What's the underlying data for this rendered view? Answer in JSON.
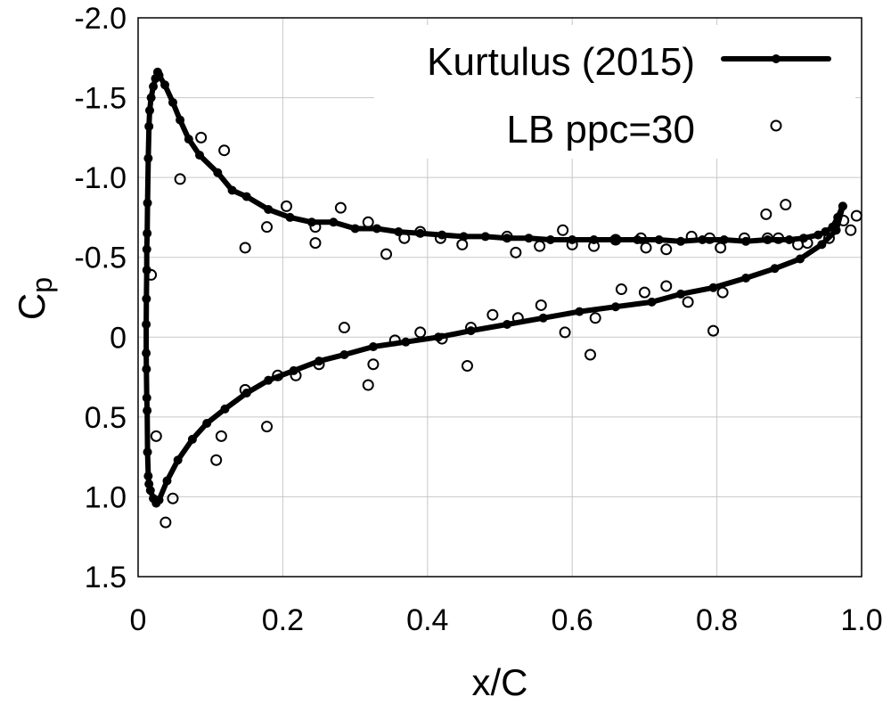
{
  "chart_data": {
    "type": "line",
    "title": "",
    "xlabel": "x/C",
    "ylabel": "Cp",
    "ylabel_main": "C",
    "ylabel_sub": "p",
    "xlim": [
      0,
      1.0
    ],
    "ylim": [
      -2.0,
      1.5
    ],
    "y_inverted": true,
    "grid": true,
    "legend_position": "top-right",
    "x_ticks": [
      {
        "value": 0.0,
        "label": "0"
      },
      {
        "value": 0.2,
        "label": "0.2"
      },
      {
        "value": 0.4,
        "label": "0.4"
      },
      {
        "value": 0.6,
        "label": "0.6"
      },
      {
        "value": 0.8,
        "label": "0.8"
      },
      {
        "value": 1.0,
        "label": "1.0"
      }
    ],
    "y_ticks": [
      {
        "value": -2.0,
        "label": "-2.0"
      },
      {
        "value": -1.5,
        "label": "-1.5"
      },
      {
        "value": -1.0,
        "label": "-1.0"
      },
      {
        "value": -0.5,
        "label": "-0.5"
      },
      {
        "value": 0.0,
        "label": "0"
      },
      {
        "value": 0.5,
        "label": "0.5"
      },
      {
        "value": 1.0,
        "label": "1.0"
      },
      {
        "value": 1.5,
        "label": "1.5"
      }
    ],
    "series": [
      {
        "name": "Kurtulus (2015)",
        "style": "line-with-points",
        "color": "#000000",
        "points": [
          [
            0.974,
            -0.82
          ],
          [
            0.967,
            -0.75
          ],
          [
            0.96,
            -0.69
          ],
          [
            0.95,
            -0.66
          ],
          [
            0.94,
            -0.64
          ],
          [
            0.92,
            -0.62
          ],
          [
            0.9,
            -0.61
          ],
          [
            0.87,
            -0.61
          ],
          [
            0.84,
            -0.6
          ],
          [
            0.81,
            -0.61
          ],
          [
            0.78,
            -0.61
          ],
          [
            0.75,
            -0.6
          ],
          [
            0.72,
            -0.61
          ],
          [
            0.69,
            -0.61
          ],
          [
            0.66,
            -0.61
          ],
          [
            0.63,
            -0.61
          ],
          [
            0.6,
            -0.61
          ],
          [
            0.57,
            -0.61
          ],
          [
            0.54,
            -0.62
          ],
          [
            0.51,
            -0.62
          ],
          [
            0.48,
            -0.63
          ],
          [
            0.45,
            -0.63
          ],
          [
            0.42,
            -0.64
          ],
          [
            0.39,
            -0.65
          ],
          [
            0.36,
            -0.66
          ],
          [
            0.33,
            -0.68
          ],
          [
            0.3,
            -0.68
          ],
          [
            0.27,
            -0.72
          ],
          [
            0.24,
            -0.72
          ],
          [
            0.21,
            -0.75
          ],
          [
            0.18,
            -0.8
          ],
          [
            0.15,
            -0.88
          ],
          [
            0.13,
            -0.92
          ],
          [
            0.11,
            -1.03
          ],
          [
            0.085,
            -1.14
          ],
          [
            0.07,
            -1.24
          ],
          [
            0.058,
            -1.36
          ],
          [
            0.048,
            -1.47
          ],
          [
            0.037,
            -1.58
          ],
          [
            0.029,
            -1.64
          ],
          [
            0.027,
            -1.66
          ],
          [
            0.024,
            -1.62
          ],
          [
            0.021,
            -1.57
          ],
          [
            0.018,
            -1.5
          ],
          [
            0.016,
            -1.42
          ],
          [
            0.015,
            -1.32
          ],
          [
            0.014,
            -1.12
          ],
          [
            0.013,
            -0.84
          ],
          [
            0.0125,
            -0.65
          ],
          [
            0.012,
            -0.55
          ],
          [
            0.012,
            -0.42
          ],
          [
            0.0115,
            -0.24
          ],
          [
            0.0112,
            -0.08
          ],
          [
            0.0112,
            0.1
          ],
          [
            0.0115,
            0.2
          ],
          [
            0.012,
            0.38
          ],
          [
            0.0125,
            0.46
          ],
          [
            0.013,
            0.72
          ],
          [
            0.014,
            0.87
          ],
          [
            0.015,
            0.92
          ],
          [
            0.017,
            0.96
          ],
          [
            0.021,
            1.01
          ],
          [
            0.025,
            1.04
          ],
          [
            0.029,
            1.02
          ],
          [
            0.04,
            0.9
          ],
          [
            0.055,
            0.77
          ],
          [
            0.075,
            0.64
          ],
          [
            0.095,
            0.54
          ],
          [
            0.12,
            0.45
          ],
          [
            0.15,
            0.35
          ],
          [
            0.18,
            0.27
          ],
          [
            0.215,
            0.21
          ],
          [
            0.25,
            0.15
          ],
          [
            0.285,
            0.11
          ],
          [
            0.325,
            0.06
          ],
          [
            0.37,
            0.03
          ],
          [
            0.415,
            0.0
          ],
          [
            0.46,
            -0.04
          ],
          [
            0.51,
            -0.08
          ],
          [
            0.56,
            -0.12
          ],
          [
            0.61,
            -0.16
          ],
          [
            0.66,
            -0.19
          ],
          [
            0.71,
            -0.22
          ],
          [
            0.75,
            -0.27
          ],
          [
            0.795,
            -0.31
          ],
          [
            0.84,
            -0.37
          ],
          [
            0.88,
            -0.43
          ],
          [
            0.915,
            -0.49
          ],
          [
            0.945,
            -0.58
          ],
          [
            0.965,
            -0.67
          ],
          [
            0.974,
            -0.82
          ]
        ]
      },
      {
        "name": "LB ppc=30",
        "style": "open-circles",
        "color": "#000000",
        "points": [
          [
            0.087,
            -1.25
          ],
          [
            0.119,
            -1.17
          ],
          [
            0.058,
            -0.99
          ],
          [
            0.205,
            -0.82
          ],
          [
            0.28,
            -0.81
          ],
          [
            0.318,
            -0.72
          ],
          [
            0.245,
            -0.69
          ],
          [
            0.178,
            -0.69
          ],
          [
            0.39,
            -0.66
          ],
          [
            0.368,
            -0.62
          ],
          [
            0.418,
            -0.62
          ],
          [
            0.448,
            -0.58
          ],
          [
            0.245,
            -0.59
          ],
          [
            0.148,
            -0.56
          ],
          [
            0.343,
            -0.52
          ],
          [
            0.51,
            -0.63
          ],
          [
            0.522,
            -0.53
          ],
          [
            0.555,
            -0.57
          ],
          [
            0.587,
            -0.67
          ],
          [
            0.6,
            -0.58
          ],
          [
            0.63,
            -0.57
          ],
          [
            0.66,
            -0.61
          ],
          [
            0.695,
            -0.62
          ],
          [
            0.702,
            -0.56
          ],
          [
            0.73,
            -0.55
          ],
          [
            0.765,
            -0.63
          ],
          [
            0.79,
            -0.62
          ],
          [
            0.805,
            -0.56
          ],
          [
            0.838,
            -0.62
          ],
          [
            0.868,
            -0.77
          ],
          [
            0.895,
            -0.83
          ],
          [
            0.875,
            -1.32
          ],
          [
            0.87,
            -0.62
          ],
          [
            0.885,
            -0.62
          ],
          [
            0.912,
            -0.58
          ],
          [
            0.925,
            -0.59
          ],
          [
            0.955,
            -0.62
          ],
          [
            0.975,
            -0.73
          ],
          [
            0.985,
            -0.67
          ],
          [
            0.993,
            -0.76
          ],
          [
            0.018,
            -0.39
          ],
          [
            0.025,
            0.62
          ],
          [
            0.048,
            1.01
          ],
          [
            0.038,
            1.16
          ],
          [
            0.108,
            0.77
          ],
          [
            0.115,
            0.62
          ],
          [
            0.178,
            0.56
          ],
          [
            0.148,
            0.33
          ],
          [
            0.193,
            0.24
          ],
          [
            0.218,
            0.24
          ],
          [
            0.25,
            0.17
          ],
          [
            0.318,
            0.3
          ],
          [
            0.325,
            0.17
          ],
          [
            0.285,
            -0.06
          ],
          [
            0.355,
            0.02
          ],
          [
            0.39,
            -0.03
          ],
          [
            0.42,
            0.01
          ],
          [
            0.455,
            0.18
          ],
          [
            0.46,
            -0.06
          ],
          [
            0.49,
            -0.14
          ],
          [
            0.525,
            -0.12
          ],
          [
            0.557,
            -0.2
          ],
          [
            0.59,
            -0.03
          ],
          [
            0.625,
            0.11
          ],
          [
            0.632,
            -0.12
          ],
          [
            0.668,
            -0.3
          ],
          [
            0.7,
            -0.28
          ],
          [
            0.73,
            -0.32
          ],
          [
            0.76,
            -0.22
          ],
          [
            0.795,
            -0.04
          ],
          [
            0.808,
            -0.28
          ]
        ]
      }
    ]
  }
}
